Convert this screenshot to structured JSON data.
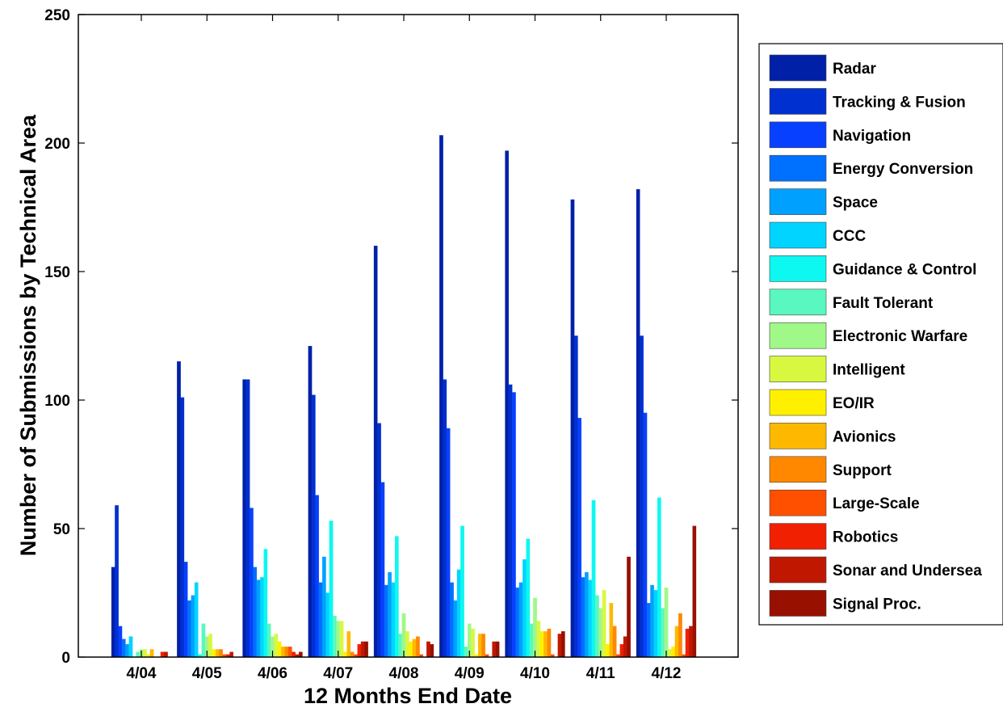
{
  "chart_data": {
    "type": "bar",
    "xlabel": "12 Months End Date",
    "ylabel": "Number of Submissions by Technical Area",
    "ylim": [
      0,
      250
    ],
    "yticks": [
      0,
      50,
      100,
      150,
      200,
      250
    ],
    "categories": [
      "4/04",
      "4/05",
      "4/06",
      "4/07",
      "4/08",
      "4/09",
      "4/10",
      "4/11",
      "4/12"
    ],
    "legend_position": "right-outside",
    "series": [
      {
        "name": "Radar",
        "color": "#0020a8",
        "values": [
          35,
          115,
          108,
          121,
          160,
          203,
          197,
          178,
          182
        ]
      },
      {
        "name": "Tracking & Fusion",
        "color": "#0030d0",
        "values": [
          59,
          101,
          108,
          102,
          91,
          108,
          106,
          125,
          125
        ]
      },
      {
        "name": "Navigation",
        "color": "#0840ff",
        "values": [
          12,
          37,
          58,
          63,
          68,
          89,
          103,
          93,
          95
        ]
      },
      {
        "name": "Energy Conversion",
        "color": "#0070ff",
        "values": [
          7,
          22,
          35,
          29,
          28,
          29,
          27,
          31,
          21
        ]
      },
      {
        "name": "Space",
        "color": "#00a0ff",
        "values": [
          5,
          24,
          30,
          39,
          33,
          22,
          29,
          33,
          28
        ]
      },
      {
        "name": "CCC",
        "color": "#00d4ff",
        "values": [
          8,
          29,
          31,
          25,
          29,
          34,
          38,
          30,
          26
        ]
      },
      {
        "name": "Guidance & Control",
        "color": "#0cf8f0",
        "values": [
          0,
          1,
          42,
          53,
          47,
          51,
          46,
          61,
          62
        ]
      },
      {
        "name": "Fault Tolerant",
        "color": "#58f8c0",
        "values": [
          2,
          13,
          13,
          16,
          9,
          4,
          13,
          24,
          19
        ]
      },
      {
        "name": "Electronic Warfare",
        "color": "#a0f888",
        "values": [
          3,
          8,
          8,
          14,
          17,
          13,
          23,
          19,
          27
        ]
      },
      {
        "name": "Intelligent",
        "color": "#d8f840",
        "values": [
          3,
          9,
          9,
          14,
          10,
          11,
          14,
          26,
          3
        ]
      },
      {
        "name": "EO/IR",
        "color": "#fff000",
        "values": [
          1,
          3,
          6,
          2,
          6,
          1,
          10,
          5,
          4
        ]
      },
      {
        "name": "Avionics",
        "color": "#ffb800",
        "values": [
          3,
          3,
          4,
          10,
          7,
          9,
          10,
          21,
          12
        ]
      },
      {
        "name": "Support",
        "color": "#ff8800",
        "values": [
          0,
          3,
          4,
          2,
          8,
          9,
          11,
          12,
          17
        ]
      },
      {
        "name": "Large-Scale",
        "color": "#ff5000",
        "values": [
          0,
          1,
          4,
          1,
          1,
          1,
          1,
          1,
          1
        ]
      },
      {
        "name": "Robotics",
        "color": "#f02000",
        "values": [
          2,
          1,
          2,
          5,
          0,
          0,
          0,
          5,
          11
        ]
      },
      {
        "name": "Sonar and Undersea",
        "color": "#c01800",
        "values": [
          2,
          2,
          1,
          6,
          6,
          6,
          9,
          8,
          12
        ]
      },
      {
        "name": "Signal Proc.",
        "color": "#981000",
        "values": [
          0,
          0,
          2,
          6,
          5,
          6,
          10,
          39,
          51
        ]
      }
    ]
  }
}
